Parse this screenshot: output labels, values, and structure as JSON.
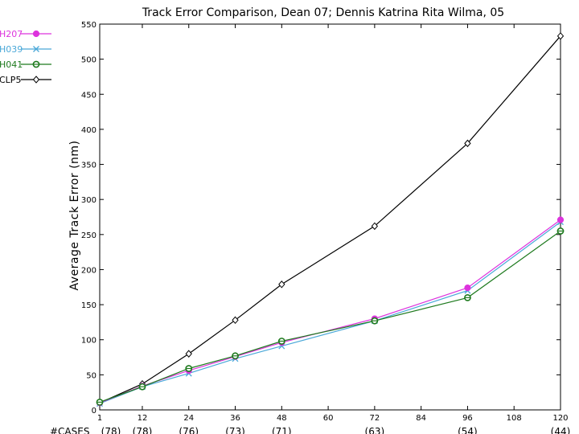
{
  "chart_data": {
    "type": "line",
    "title": "Track Error Comparison, Dean 07; Dennis Katrina Rita Wilma, 05",
    "ylabel": "Average Track Error (nm)",
    "xlabel": "",
    "x": [
      1,
      12,
      24,
      36,
      48,
      60,
      72,
      84,
      96,
      108,
      120
    ],
    "x_tick_labels": [
      "1",
      "12",
      "24",
      "36",
      "48",
      "60",
      "72",
      "84",
      "96",
      "108",
      "120"
    ],
    "ylim": [
      0,
      550
    ],
    "y_ticks": [
      0,
      50,
      100,
      150,
      200,
      250,
      300,
      350,
      400,
      450,
      500,
      550
    ],
    "y_tick_labels": [
      "0",
      "50",
      "100",
      "150",
      "200",
      "250",
      "300",
      "350",
      "400",
      "450",
      "500",
      "550"
    ],
    "grid": false,
    "legend_position": "top-left",
    "cases_label": "#CASES",
    "cases": [
      {
        "x": 1,
        "label": "(78)"
      },
      {
        "x": 12,
        "label": "(78)"
      },
      {
        "x": 24,
        "label": "(76)"
      },
      {
        "x": 36,
        "label": "(73)"
      },
      {
        "x": 48,
        "label": "(71)"
      },
      {
        "x": 72,
        "label": "(63)"
      },
      {
        "x": 96,
        "label": "(54)"
      },
      {
        "x": 120,
        "label": "(44)"
      }
    ],
    "series": [
      {
        "name": "H207",
        "color": "#dd33dd",
        "marker": "filled-circle",
        "points": [
          [
            1,
            10
          ],
          [
            12,
            34
          ],
          [
            24,
            56
          ],
          [
            36,
            76
          ],
          [
            48,
            96
          ],
          [
            72,
            130
          ],
          [
            96,
            174
          ],
          [
            120,
            271
          ]
        ]
      },
      {
        "name": "H039",
        "color": "#4aa8d8",
        "marker": "x",
        "points": [
          [
            1,
            9
          ],
          [
            12,
            33
          ],
          [
            24,
            52
          ],
          [
            36,
            73
          ],
          [
            48,
            91
          ],
          [
            72,
            127
          ],
          [
            96,
            170
          ],
          [
            120,
            268
          ]
        ]
      },
      {
        "name": "H041",
        "color": "#1e7a1e",
        "marker": "open-circle",
        "points": [
          [
            1,
            11
          ],
          [
            12,
            33
          ],
          [
            24,
            59
          ],
          [
            36,
            77
          ],
          [
            48,
            98
          ],
          [
            72,
            127
          ],
          [
            96,
            160
          ],
          [
            120,
            255
          ]
        ]
      },
      {
        "name": "CLP5",
        "color": "#000000",
        "marker": "diamond",
        "points": [
          [
            1,
            10
          ],
          [
            12,
            37
          ],
          [
            24,
            80
          ],
          [
            36,
            128
          ],
          [
            48,
            179
          ],
          [
            72,
            262
          ],
          [
            96,
            380
          ],
          [
            120,
            533
          ]
        ]
      }
    ]
  }
}
